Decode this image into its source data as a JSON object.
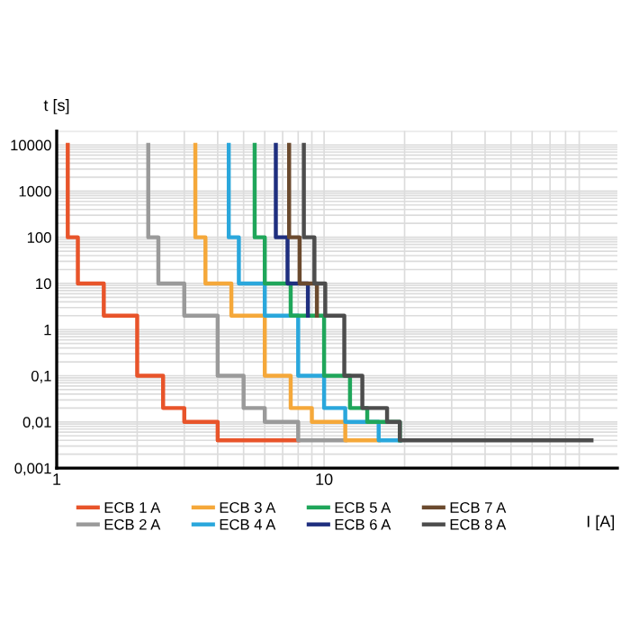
{
  "chart_data": {
    "type": "step",
    "xlabel": "I [A]",
    "ylabel": "t [s]",
    "log": "xy",
    "grid": true,
    "legend": "bottom",
    "xlim": [
      1,
      125
    ],
    "xticks": [
      1,
      10
    ],
    "ylim": [
      0.001,
      20000
    ],
    "yticks": [
      {
        "value": 0.001,
        "label": "0,001"
      },
      {
        "value": 0.01,
        "label": "0,01"
      },
      {
        "value": 0.1,
        "label": "0,1"
      },
      1,
      10,
      100,
      1000,
      10000
    ],
    "series": [
      {
        "name": "ECB 1 A",
        "color": "#e8542a",
        "x": [
          1.1,
          1.1,
          1.2,
          1.5,
          2,
          2.5,
          3,
          4,
          8
        ],
        "values": [
          10000,
          100,
          10,
          2,
          0.1,
          0.02,
          0.01,
          0.004,
          0.004
        ]
      },
      {
        "name": "ECB 2 A",
        "color": "#9a9a9a",
        "x": [
          2.2,
          2.2,
          2.4,
          3,
          4,
          5,
          6,
          8,
          12
        ],
        "values": [
          10000,
          100,
          10,
          2,
          0.1,
          0.02,
          0.01,
          0.004,
          0.004
        ]
      },
      {
        "name": "ECB 3 A",
        "color": "#f5a83a",
        "x": [
          3.3,
          3.3,
          3.6,
          4.5,
          6,
          7.5,
          9,
          12,
          16
        ],
        "values": [
          10000,
          100,
          10,
          2,
          0.1,
          0.02,
          0.01,
          0.004,
          0.004
        ]
      },
      {
        "name": "ECB 4 A",
        "color": "#2aa7dc",
        "x": [
          4.4,
          4.4,
          4.8,
          6,
          8,
          10,
          12,
          16,
          19.2
        ],
        "values": [
          10000,
          100,
          10,
          2,
          0.1,
          0.02,
          0.01,
          0.004,
          0.004
        ]
      },
      {
        "name": "ECB 5 A",
        "color": "#1fa65a",
        "x": [
          5.5,
          5.5,
          6,
          7.5,
          10,
          12.5,
          14.5,
          19.2
        ],
        "values": [
          10000,
          100,
          10,
          2,
          0.1,
          0.02,
          0.01,
          0.004
        ]
      },
      {
        "name": "ECB 6 A",
        "color": "#1f2f7f",
        "x": [
          6.6,
          6.6,
          7.3,
          8.7
        ],
        "values": [
          10000,
          100,
          10,
          2
        ]
      },
      {
        "name": "ECB 7 A",
        "color": "#6b4a2e",
        "x": [
          7.4,
          7.4,
          8.1,
          9.4
        ],
        "values": [
          10000,
          100,
          10,
          2
        ]
      },
      {
        "name": "ECB 8 A",
        "color": "#4d4d4d",
        "x": [
          8.4,
          8.4,
          9.2,
          10.1,
          11.9,
          13.9,
          17.2,
          19.2,
          100
        ],
        "values": [
          10000,
          100,
          10,
          2,
          0.1,
          0.02,
          0.01,
          0.004,
          0.004
        ]
      }
    ]
  }
}
